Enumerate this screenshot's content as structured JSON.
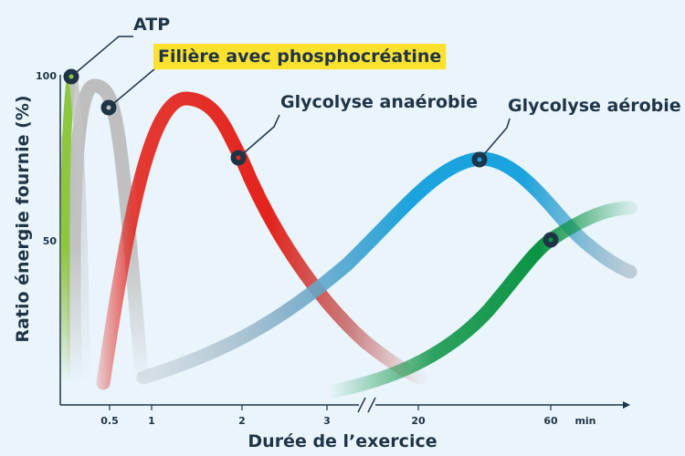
{
  "chart_data": {
    "type": "line",
    "xlabel": "Durée de l’exercice",
    "ylabel": "Ratio énergie fournie (%)",
    "x_ticks": [
      "0.5",
      "1",
      "2",
      "3",
      "20",
      "60"
    ],
    "x_unit": "min",
    "y_ticks": [
      "100",
      "50"
    ],
    "ylim": [
      0,
      100
    ],
    "axis_break_between": [
      "3",
      "20"
    ],
    "grid": false,
    "colors": {
      "background": "#e9f4fb",
      "axis": "#1f3547",
      "atp": "#8dc63f",
      "phosphocreatine": "#b9b9b9",
      "anaerobic": "#e3241d",
      "aerobic_up": "#1aa3dc",
      "aerobic_down": "#0b9444",
      "highlight": "#fde12f"
    },
    "series": [
      {
        "name": "ATP",
        "color": "#8dc63f",
        "points": [
          [
            "0",
            100
          ],
          [
            "0.3",
            10
          ]
        ]
      },
      {
        "name": "Filière avec phosphocréatine",
        "color": "#b9b9b9",
        "highlight": true,
        "points": [
          [
            "0",
            5
          ],
          [
            "0.3",
            97
          ],
          [
            "0.5",
            90
          ],
          [
            "1",
            3
          ]
        ]
      },
      {
        "name": "Glycolyse anaérobie",
        "color": "#e3241d",
        "points": [
          [
            "0.5",
            5
          ],
          [
            "1",
            75
          ],
          [
            "1.4",
            93
          ],
          [
            "2",
            75
          ],
          [
            "3",
            30
          ],
          [
            "20",
            3
          ]
        ]
      },
      {
        "name": "Glycolyse aérobie",
        "color": "#1aa3dc",
        "points": [
          [
            "1",
            3
          ],
          [
            "3",
            32
          ],
          [
            "20",
            70
          ],
          [
            "40",
            74
          ],
          [
            "60",
            50
          ],
          [
            "80",
            38
          ]
        ]
      },
      {
        "name": "",
        "color": "#0b9444",
        "points": [
          [
            "3",
            3
          ],
          [
            "20",
            10
          ],
          [
            "40",
            30
          ],
          [
            "60",
            50
          ],
          [
            "80",
            61
          ]
        ]
      }
    ],
    "annotations": [
      {
        "text": "ATP",
        "target_series": "ATP",
        "y": 100
      },
      {
        "text": "Filière avec phosphocréatine",
        "target_series": "Filière avec phosphocréatine",
        "y": 90
      },
      {
        "text": "Glycolyse anaérobie",
        "target_series": "Glycolyse anaérobie",
        "y": 75
      },
      {
        "text": "Glycolyse aérobie",
        "target_series": "Glycolyse aérobie",
        "y": 74
      }
    ]
  }
}
